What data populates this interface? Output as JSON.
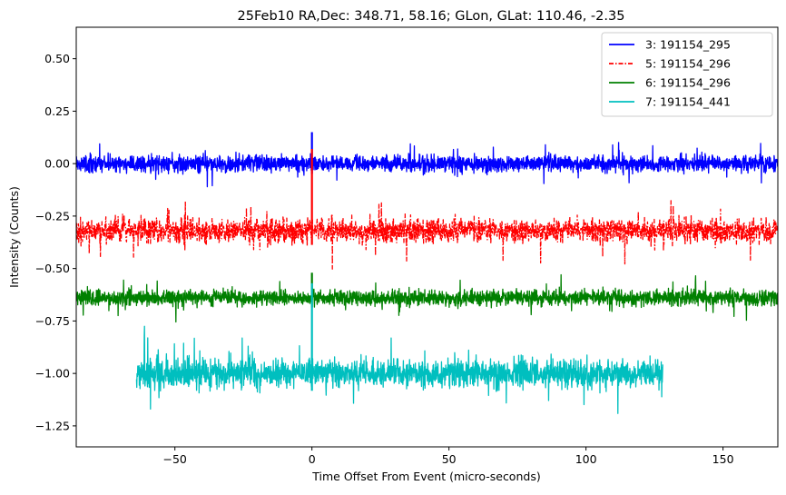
{
  "chart_data": {
    "type": "line",
    "title": "25Feb10 RA,Dec:  348.71,  58.16; GLon, GLat:  110.46,  -2.35",
    "xlabel": "Time Offset From Event (micro-seconds)",
    "ylabel": "Intensity (Counts)",
    "xlim": [
      -86,
      170
    ],
    "ylim": [
      -1.35,
      0.65
    ],
    "xticks": [
      -50,
      0,
      50,
      100,
      150
    ],
    "xtick_labels": [
      "−50",
      "0",
      "50",
      "100",
      "150"
    ],
    "yticks": [
      0.5,
      0.25,
      0.0,
      -0.25,
      -0.5,
      -0.75,
      -1.0,
      -1.25
    ],
    "ytick_labels": [
      "0.50",
      "0.25",
      "0.00",
      "−0.25",
      "−0.50",
      "−0.75",
      "−1.00",
      "−1.25"
    ],
    "legend_position": "top-right",
    "series": [
      {
        "name": "3: 191154_295",
        "color": "#0000ff",
        "style": "solid",
        "baseline": 0.0,
        "noise": 0.032,
        "x_start": -86,
        "x_end": 170,
        "spike_peak": 0.15
      },
      {
        "name": "5: 191154_296",
        "color": "#ff0000",
        "style": "dashdot",
        "baseline": -0.32,
        "noise": 0.045,
        "x_start": -86,
        "x_end": 170,
        "spike_peak": 0.07
      },
      {
        "name": "6: 191154_296",
        "color": "#008000",
        "style": "solid",
        "baseline": -0.64,
        "noise": 0.03,
        "x_start": -86,
        "x_end": 170,
        "spike_peak": -0.52
      },
      {
        "name": "7: 191154_441",
        "color": "#00bfbf",
        "style": "solid",
        "baseline": -1.0,
        "noise": 0.055,
        "x_start": -64,
        "x_end": 128,
        "spike_peak": -0.57
      }
    ]
  }
}
